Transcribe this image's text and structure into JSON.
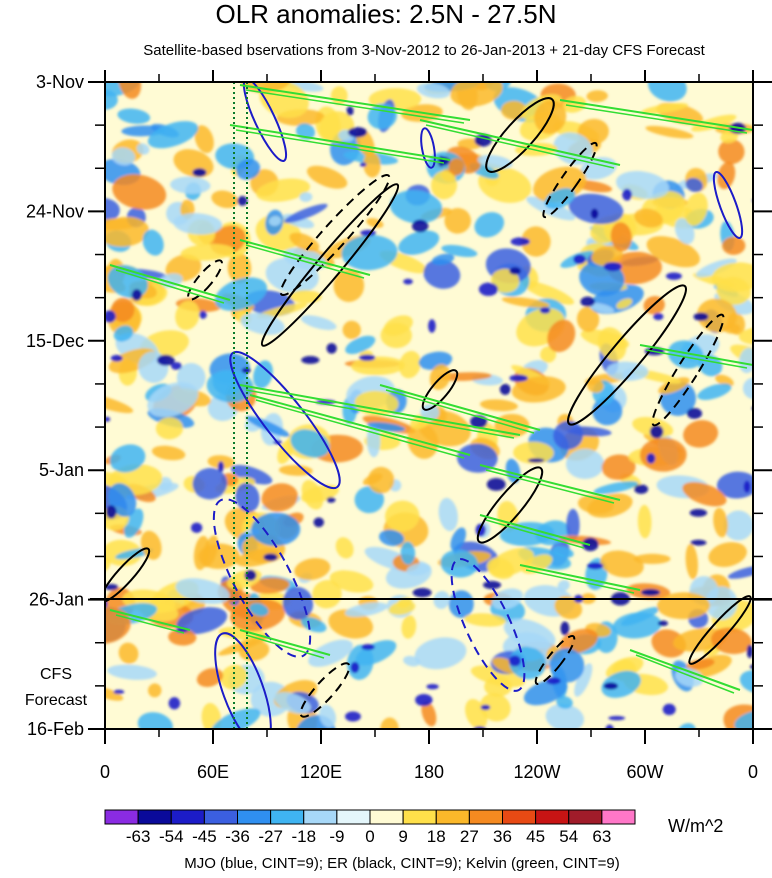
{
  "chart_data": {
    "type": "heatmap",
    "title": "OLR anomalies: 2.5N - 27.5N",
    "subtitle": "Satellite-based bservations from 3-Nov-2012 to 26-Jan-2013 + 21-day CFS Forecast",
    "x_ticks": [
      {
        "label": "0",
        "lon": 0
      },
      {
        "label": "60E",
        "lon": 60
      },
      {
        "label": "120E",
        "lon": 120
      },
      {
        "label": "180",
        "lon": 180
      },
      {
        "label": "120W",
        "lon": 240
      },
      {
        "label": "60W",
        "lon": 300
      },
      {
        "label": "0",
        "lon": 360
      }
    ],
    "x_range": [
      0,
      360
    ],
    "y_ticks": [
      {
        "label": "3-Nov",
        "day": 0
      },
      {
        "label": "24-Nov",
        "day": 21
      },
      {
        "label": "15-Dec",
        "day": 42
      },
      {
        "label": "5-Jan",
        "day": 63
      },
      {
        "label": "26-Jan",
        "day": 84
      },
      {
        "label": "16-Feb",
        "day": 105
      }
    ],
    "y_range_days": [
      0,
      105
    ],
    "forecast_start_day": 84,
    "forecast_label": [
      "CFS",
      "Forecast"
    ],
    "colorbar": {
      "levels": [
        "-63",
        "-54",
        "-45",
        "-36",
        "-27",
        "-18",
        "-9",
        "0",
        "9",
        "18",
        "27",
        "36",
        "45",
        "54",
        "63"
      ],
      "colors": [
        "#8a2be2",
        "#0a0a9a",
        "#1c1cc8",
        "#3b5fe0",
        "#2f8ff0",
        "#3fb4f2",
        "#a7d8f8",
        "#e4f6fb",
        "#fffbd4",
        "#ffe04a",
        "#fbb82a",
        "#f58a20",
        "#e84a14",
        "#c81414",
        "#a01c2a",
        "#ff77c8"
      ],
      "units": "W/m^2"
    },
    "legend_note": "MJO (blue, CINT=9); ER (black, CINT=9); Kelvin (green, CINT=9)",
    "overlays": {
      "mjo_color": "#1c1cc8",
      "er_color": "#000000",
      "kelvin_color": "#33dd33",
      "date_line_color": "#0a7a2a"
    }
  }
}
